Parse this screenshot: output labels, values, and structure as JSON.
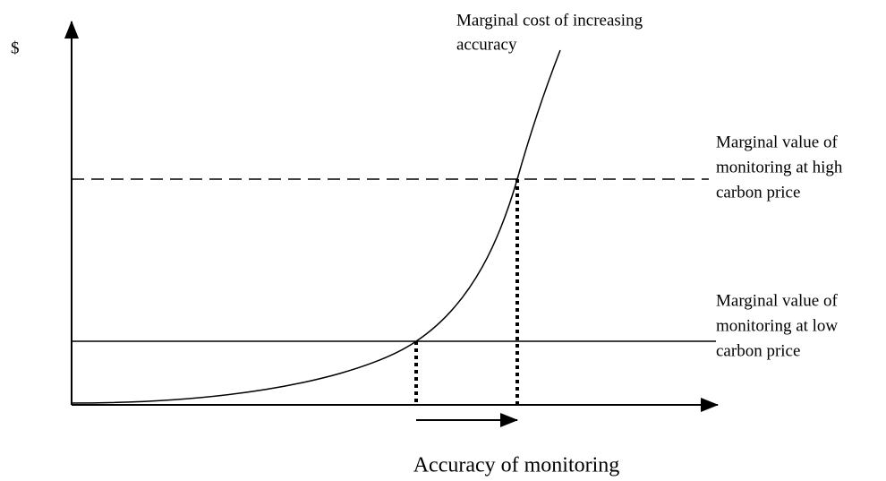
{
  "y_axis_label": "$",
  "x_axis_label": "Accuracy of monitoring",
  "cost_curve_label": [
    "Marginal cost of increasing",
    "accuracy"
  ],
  "high_price_label": [
    "Marginal value of",
    "monitoring at high",
    "carbon price"
  ],
  "low_price_label": [
    "Marginal value of",
    "monitoring at low",
    "carbon price"
  ]
}
